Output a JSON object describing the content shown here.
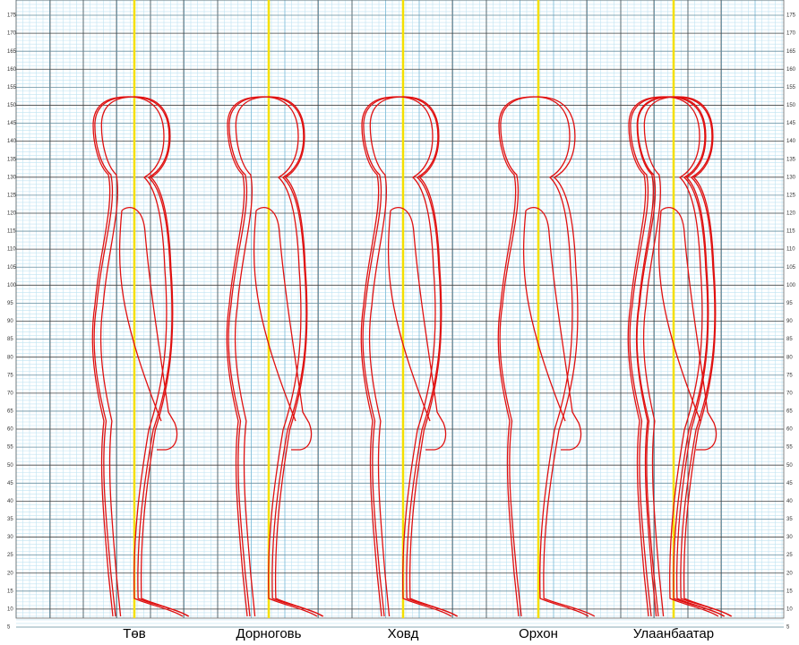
{
  "axis": {
    "ticks": [
      5,
      10,
      15,
      20,
      25,
      30,
      35,
      40,
      45,
      50,
      55,
      60,
      65,
      70,
      75,
      80,
      85,
      90,
      95,
      100,
      105,
      110,
      115,
      120,
      125,
      130,
      135,
      140,
      145,
      150,
      155,
      160,
      165,
      170,
      175
    ]
  },
  "labels": [
    "Төв",
    "Дорноговь",
    "Ховд",
    "Орхон",
    "Улаанбаатар"
  ]
}
